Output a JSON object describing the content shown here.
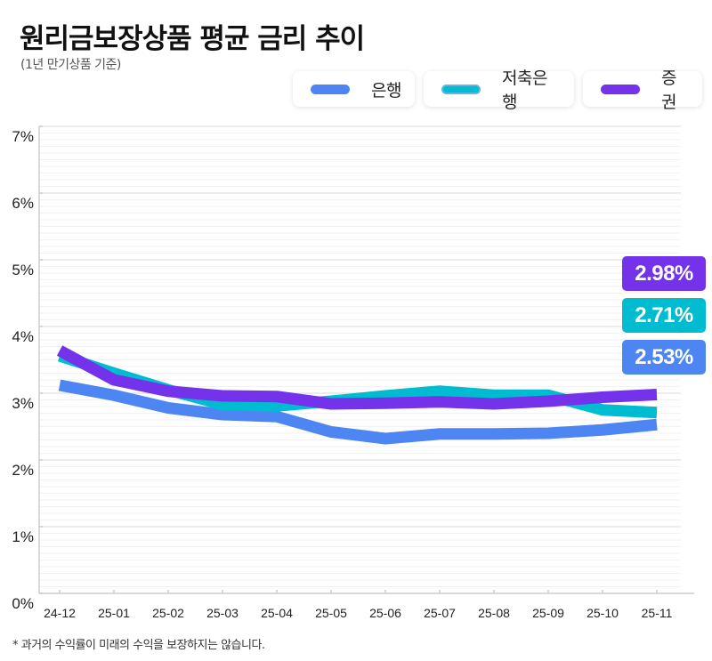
{
  "title": "원리금보장상품 평균 금리 추이",
  "subtitle": "(1년 만기상품 기준)",
  "footnote": "* 과거의 수익률이 미래의 수익을 보장하지는 않습니다.",
  "legend": [
    {
      "label": "은행",
      "color": "#4D86F2"
    },
    {
      "label": "저축은행",
      "color": "#00BCD0",
      "border_color": "#5BB7E8"
    },
    {
      "label": "증권",
      "color": "#7432EA"
    }
  ],
  "badges": [
    {
      "text": "2.98%",
      "color": "#7432EA"
    },
    {
      "text": "2.71%",
      "color": "#00BCD0"
    },
    {
      "text": "2.53%",
      "color": "#4D86F2"
    }
  ],
  "chart_data": {
    "type": "line",
    "title": "원리금보장상품 평균 금리 추이",
    "subtitle": "(1년 만기상품 기준)",
    "xlabel": "",
    "ylabel": "",
    "categories": [
      "24-12",
      "25-01",
      "25-02",
      "25-03",
      "25-04",
      "25-05",
      "25-06",
      "25-07",
      "25-08",
      "25-09",
      "25-10",
      "25-11"
    ],
    "yticks": [
      "0%",
      "1%",
      "2%",
      "3%",
      "4%",
      "5%",
      "6%",
      "7%"
    ],
    "ylim": [
      0,
      7
    ],
    "grid": true,
    "minor_grid_step": 0.1,
    "legend_position": "top-right",
    "series": [
      {
        "name": "은행",
        "color": "#4D86F2",
        "values": [
          3.12,
          2.97,
          2.78,
          2.68,
          2.65,
          2.42,
          2.32,
          2.39,
          2.39,
          2.4,
          2.45,
          2.53
        ]
      },
      {
        "name": "저축은행",
        "color": "#00BCD0",
        "values": [
          3.56,
          3.3,
          3.05,
          2.83,
          2.81,
          2.88,
          2.96,
          3.03,
          2.97,
          2.97,
          2.75,
          2.71
        ]
      },
      {
        "name": "증권",
        "color": "#7432EA",
        "values": [
          3.64,
          3.2,
          3.03,
          2.96,
          2.95,
          2.84,
          2.85,
          2.87,
          2.84,
          2.88,
          2.94,
          2.98
        ]
      }
    ],
    "end_labels": [
      "2.98%",
      "2.71%",
      "2.53%"
    ]
  }
}
